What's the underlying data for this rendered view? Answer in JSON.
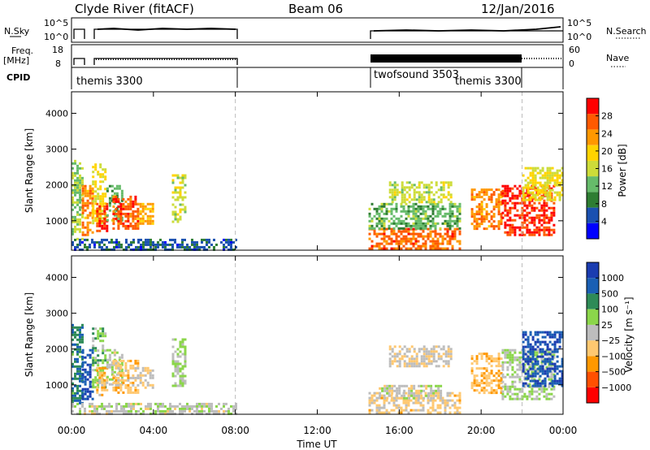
{
  "header": {
    "station": "Clyde River (fitACF)",
    "beam": "Beam 06",
    "date": "12/Jan/2016"
  },
  "small_panels": {
    "nsky": {
      "label": "N.Sky",
      "ticks": [
        "10^5",
        "10^0"
      ]
    },
    "nsearch": {
      "label": "N.Search",
      "ticks": [
        "10^5",
        "10^0"
      ]
    },
    "freq": {
      "label_line1": "Freq.",
      "label_line2": "[MHz]",
      "ticks": [
        "18",
        "8"
      ]
    },
    "nave": {
      "label": "Nave",
      "ticks": [
        "60",
        "0"
      ]
    },
    "cpid": {
      "label": "CPID",
      "labels": [
        "themis 3300",
        "twofsound 3503",
        "themis 3300"
      ]
    }
  },
  "colors": {
    "power_scale": [
      "#0000ff",
      "#1a50b0",
      "#2e7d32",
      "#66bb6a",
      "#cddc39",
      "#ffd400",
      "#ff9800",
      "#ff5a00",
      "#ff0000"
    ],
    "velocity_scale": [
      "#ff0000",
      "#ff5000",
      "#ff9800",
      "#ffc870",
      "#bdbdbd",
      "#8bd64a",
      "#2e8b57",
      "#1a5fb4",
      "#1a3cb0"
    ]
  },
  "chart_data": [
    {
      "type": "heatmap",
      "name": "power",
      "title": "",
      "xlabel": "Time UT",
      "ylabel": "Slant Range [km]",
      "x_ticks": [
        "00:00",
        "04:00",
        "08:00",
        "12:00",
        "16:00",
        "20:00",
        "00:00"
      ],
      "y_ticks": [
        "1000",
        "2000",
        "3000",
        "4000"
      ],
      "xlim": [
        0,
        24
      ],
      "ylim": [
        180,
        4600
      ],
      "colorbar": {
        "label": "Power [dB]",
        "ticks": [
          "28",
          "24",
          "20",
          "16",
          "12",
          "8",
          "4"
        ],
        "range": [
          0,
          32
        ]
      },
      "regions": [
        {
          "t0": 0.0,
          "t1": 0.5,
          "r0": 500,
          "r1": 2700,
          "value": 14
        },
        {
          "t0": 0.5,
          "t1": 1.0,
          "r0": 600,
          "r1": 2000,
          "value": 24
        },
        {
          "t0": 1.0,
          "t1": 1.6,
          "r0": 900,
          "r1": 2600,
          "value": 18
        },
        {
          "t0": 1.2,
          "t1": 1.7,
          "r0": 700,
          "r1": 1500,
          "value": 28
        },
        {
          "t0": 1.7,
          "t1": 2.5,
          "r0": 1000,
          "r1": 2000,
          "value": 12
        },
        {
          "t0": 2.0,
          "t1": 3.2,
          "r0": 800,
          "r1": 1700,
          "value": 27
        },
        {
          "t0": 3.2,
          "t1": 4.0,
          "r0": 900,
          "r1": 1500,
          "value": 22
        },
        {
          "t0": 4.9,
          "t1": 5.5,
          "r0": 1000,
          "r1": 2300,
          "value": 16
        },
        {
          "t0": 14.5,
          "t1": 19.0,
          "r0": 200,
          "r1": 800,
          "value": 26
        },
        {
          "t0": 14.5,
          "t1": 19.0,
          "r0": 800,
          "r1": 1500,
          "value": 12
        },
        {
          "t0": 15.5,
          "t1": 18.5,
          "r0": 1500,
          "r1": 2100,
          "value": 16
        },
        {
          "t0": 19.5,
          "t1": 21.0,
          "r0": 800,
          "r1": 1900,
          "value": 24
        },
        {
          "t0": 21.0,
          "t1": 23.5,
          "r0": 600,
          "r1": 2000,
          "value": 29
        },
        {
          "t0": 22.0,
          "t1": 24.0,
          "r0": 1600,
          "r1": 2500,
          "value": 18
        },
        {
          "t0": 0.0,
          "t1": 8.0,
          "r0": 180,
          "r1": 500,
          "value": 6
        }
      ]
    },
    {
      "type": "heatmap",
      "name": "velocity",
      "title": "",
      "xlabel": "Time UT",
      "ylabel": "Slant Range [km]",
      "x_ticks": [
        "00:00",
        "04:00",
        "08:00",
        "12:00",
        "16:00",
        "20:00",
        "00:00"
      ],
      "y_ticks": [
        "1000",
        "2000",
        "3000",
        "4000"
      ],
      "xlim": [
        0,
        24
      ],
      "ylim": [
        180,
        4600
      ],
      "colorbar": {
        "label": "Velocity [m s⁻¹]",
        "ticks": [
          "1000",
          "500",
          "100",
          "25",
          "−25",
          "−100",
          "−500",
          "−1000"
        ],
        "range": [
          -1200,
          1200
        ]
      },
      "regions": [
        {
          "t0": 0.0,
          "t1": 0.5,
          "r0": 500,
          "r1": 2700,
          "value": 600
        },
        {
          "t0": 0.5,
          "t1": 1.0,
          "r0": 600,
          "r1": 2000,
          "value": 900
        },
        {
          "t0": 1.0,
          "t1": 1.6,
          "r0": 900,
          "r1": 2600,
          "value": 300
        },
        {
          "t0": 1.2,
          "t1": 1.7,
          "r0": 700,
          "r1": 1500,
          "value": -300
        },
        {
          "t0": 1.7,
          "t1": 2.5,
          "r0": 1000,
          "r1": 2000,
          "value": 80
        },
        {
          "t0": 2.0,
          "t1": 3.2,
          "r0": 800,
          "r1": 1700,
          "value": -250
        },
        {
          "t0": 3.2,
          "t1": 4.0,
          "r0": 900,
          "r1": 1500,
          "value": -120
        },
        {
          "t0": 4.9,
          "t1": 5.5,
          "r0": 1000,
          "r1": 2300,
          "value": 150
        },
        {
          "t0": 14.5,
          "t1": 19.0,
          "r0": 200,
          "r1": 800,
          "value": -200
        },
        {
          "t0": 15.0,
          "t1": 18.0,
          "r0": 600,
          "r1": 1000,
          "value": 0
        },
        {
          "t0": 15.5,
          "t1": 18.5,
          "r0": 1500,
          "r1": 2100,
          "value": -120
        },
        {
          "t0": 19.5,
          "t1": 21.0,
          "r0": 800,
          "r1": 1900,
          "value": -350
        },
        {
          "t0": 21.0,
          "t1": 23.5,
          "r0": 600,
          "r1": 2000,
          "value": 150
        },
        {
          "t0": 22.0,
          "t1": 24.0,
          "r0": 1000,
          "r1": 2500,
          "value": 900
        },
        {
          "t0": 0.0,
          "t1": 8.0,
          "r0": 180,
          "r1": 500,
          "value": 40
        }
      ]
    }
  ]
}
